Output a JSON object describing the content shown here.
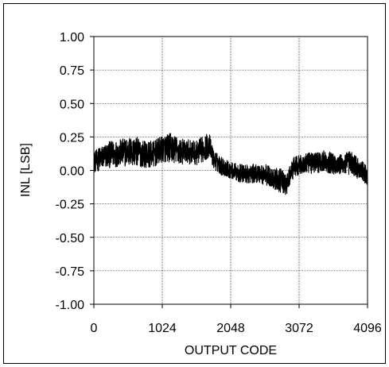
{
  "chart_data": {
    "type": "line",
    "title": "",
    "xlabel": "OUTPUT CODE",
    "ylabel": "INL [LSB]",
    "xlim": [
      0,
      4096
    ],
    "ylim": [
      -1.0,
      1.0
    ],
    "x_ticks": [
      "0",
      "1024",
      "2048",
      "3072",
      "4096"
    ],
    "y_ticks": [
      "1.00",
      "0.75",
      "0.50",
      "0.25",
      "0.00",
      "-0.25",
      "-0.50",
      "-0.75",
      "-1.00"
    ],
    "grid": true,
    "series": [
      {
        "name": "",
        "color": "#000000",
        "envelope": {
          "x": [
            0,
            128,
            256,
            384,
            512,
            640,
            768,
            896,
            1024,
            1152,
            1280,
            1408,
            1536,
            1664,
            1728,
            1792,
            1920,
            2048,
            2176,
            2304,
            2432,
            2560,
            2688,
            2816,
            2880,
            2944,
            3008,
            3072,
            3200,
            3328,
            3456,
            3584,
            3712,
            3840,
            3968,
            4096
          ],
          "mean": [
            0.06,
            0.1,
            0.12,
            0.13,
            0.14,
            0.14,
            0.12,
            0.12,
            0.16,
            0.17,
            0.14,
            0.14,
            0.13,
            0.17,
            0.19,
            0.08,
            0.03,
            0.0,
            -0.02,
            -0.03,
            -0.02,
            -0.03,
            -0.06,
            -0.08,
            -0.12,
            -0.02,
            0.03,
            0.04,
            0.05,
            0.06,
            0.07,
            0.05,
            0.04,
            0.06,
            0.01,
            -0.04
          ],
          "spread": [
            0.08,
            0.09,
            0.1,
            0.1,
            0.11,
            0.11,
            0.1,
            0.1,
            0.1,
            0.11,
            0.1,
            0.09,
            0.09,
            0.1,
            0.09,
            0.07,
            0.07,
            0.06,
            0.07,
            0.07,
            0.07,
            0.08,
            0.08,
            0.09,
            0.08,
            0.07,
            0.08,
            0.07,
            0.08,
            0.08,
            0.08,
            0.08,
            0.08,
            0.09,
            0.08,
            0.07
          ]
        },
        "peak_max": 0.35,
        "peak_min": -0.26
      }
    ]
  }
}
